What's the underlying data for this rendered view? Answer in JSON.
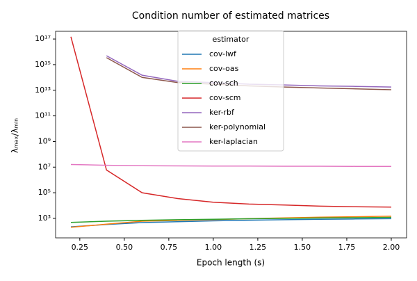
{
  "chart_data": {
    "type": "line",
    "title": "Condition number of estimated matrices",
    "xlabel": "Epoch length (s)",
    "ylabel": "λₘₐₓ/λₘᵢₙ",
    "x": [
      0.2,
      0.4,
      0.6,
      0.8,
      1.0,
      1.2,
      1.4,
      1.6,
      1.8,
      2.0
    ],
    "xlim": [
      0.114,
      2.086
    ],
    "ylim": [
      30,
      4e+17
    ],
    "log_y": true,
    "xticks": [
      0.25,
      {
        "value": 0.5,
        "label": "0.50"
      },
      0.75,
      {
        "value": 1.0,
        "label": "1.00"
      },
      1.25,
      {
        "value": 1.5,
        "label": "1.50"
      },
      1.75,
      {
        "value": 2.0,
        "label": "2.00"
      }
    ],
    "yticks": [
      {
        "value": 1000.0,
        "label": "10³"
      },
      {
        "value": 100000.0,
        "label": "10⁵"
      },
      {
        "value": 10000000.0,
        "label": "10⁷"
      },
      {
        "value": 1000000000.0,
        "label": "10⁹"
      },
      {
        "value": 100000000000.0,
        "label": "10¹¹"
      },
      {
        "value": 10000000000000.0,
        "label": "10¹³"
      },
      {
        "value": 1000000000000000.0,
        "label": "10¹⁵"
      },
      {
        "value": 1e+17,
        "label": "10¹⁷"
      }
    ],
    "legend_title": "estimator",
    "legend": "upper center",
    "series": [
      {
        "name": "cov-lwf",
        "color": "#1f77b4",
        "values": [
          220,
          330,
          470,
          550,
          640,
          720,
          780,
          840,
          900,
          950
        ]
      },
      {
        "name": "cov-oas",
        "color": "#ff7f0e",
        "values": [
          200,
          350,
          600,
          700,
          800,
          950,
          1100,
          1250,
          1350,
          1500
        ]
      },
      {
        "name": "cov-sch",
        "color": "#2ca02c",
        "values": [
          480,
          600,
          700,
          780,
          860,
          930,
          1000,
          1070,
          1130,
          1200
        ]
      },
      {
        "name": "cov-scm",
        "color": "#d62728",
        "values": [
          1.5e+17,
          6000000.0,
          100000.0,
          35000.0,
          18000.0,
          13000.0,
          11000.0,
          9000.0,
          8000.0,
          7500.0
        ]
      },
      {
        "name": "ker-rbf",
        "color": "#9467bd",
        "values": [
          null,
          5000000000000000.0,
          150000000000000.0,
          50000000000000.0,
          40000000000000.0,
          30000000000000.0,
          26000000000000.0,
          22000000000000.0,
          20000000000000.0,
          18000000000000.0
        ]
      },
      {
        "name": "ker-polynomial",
        "color": "#8c564b",
        "values": [
          null,
          3500000000000000.0,
          100000000000000.0,
          40000000000000.0,
          30000000000000.0,
          22000000000000.0,
          18000000000000.0,
          15000000000000.0,
          13000000000000.0,
          11000000000000.0
        ]
      },
      {
        "name": "ker-laplacian",
        "color": "#e377c2",
        "values": [
          16000000.0,
          14000000.0,
          13000000.0,
          12500000.0,
          12000000.0,
          12000000.0,
          11800000.0,
          11800000.0,
          11500000.0,
          11500000.0
        ]
      }
    ]
  }
}
